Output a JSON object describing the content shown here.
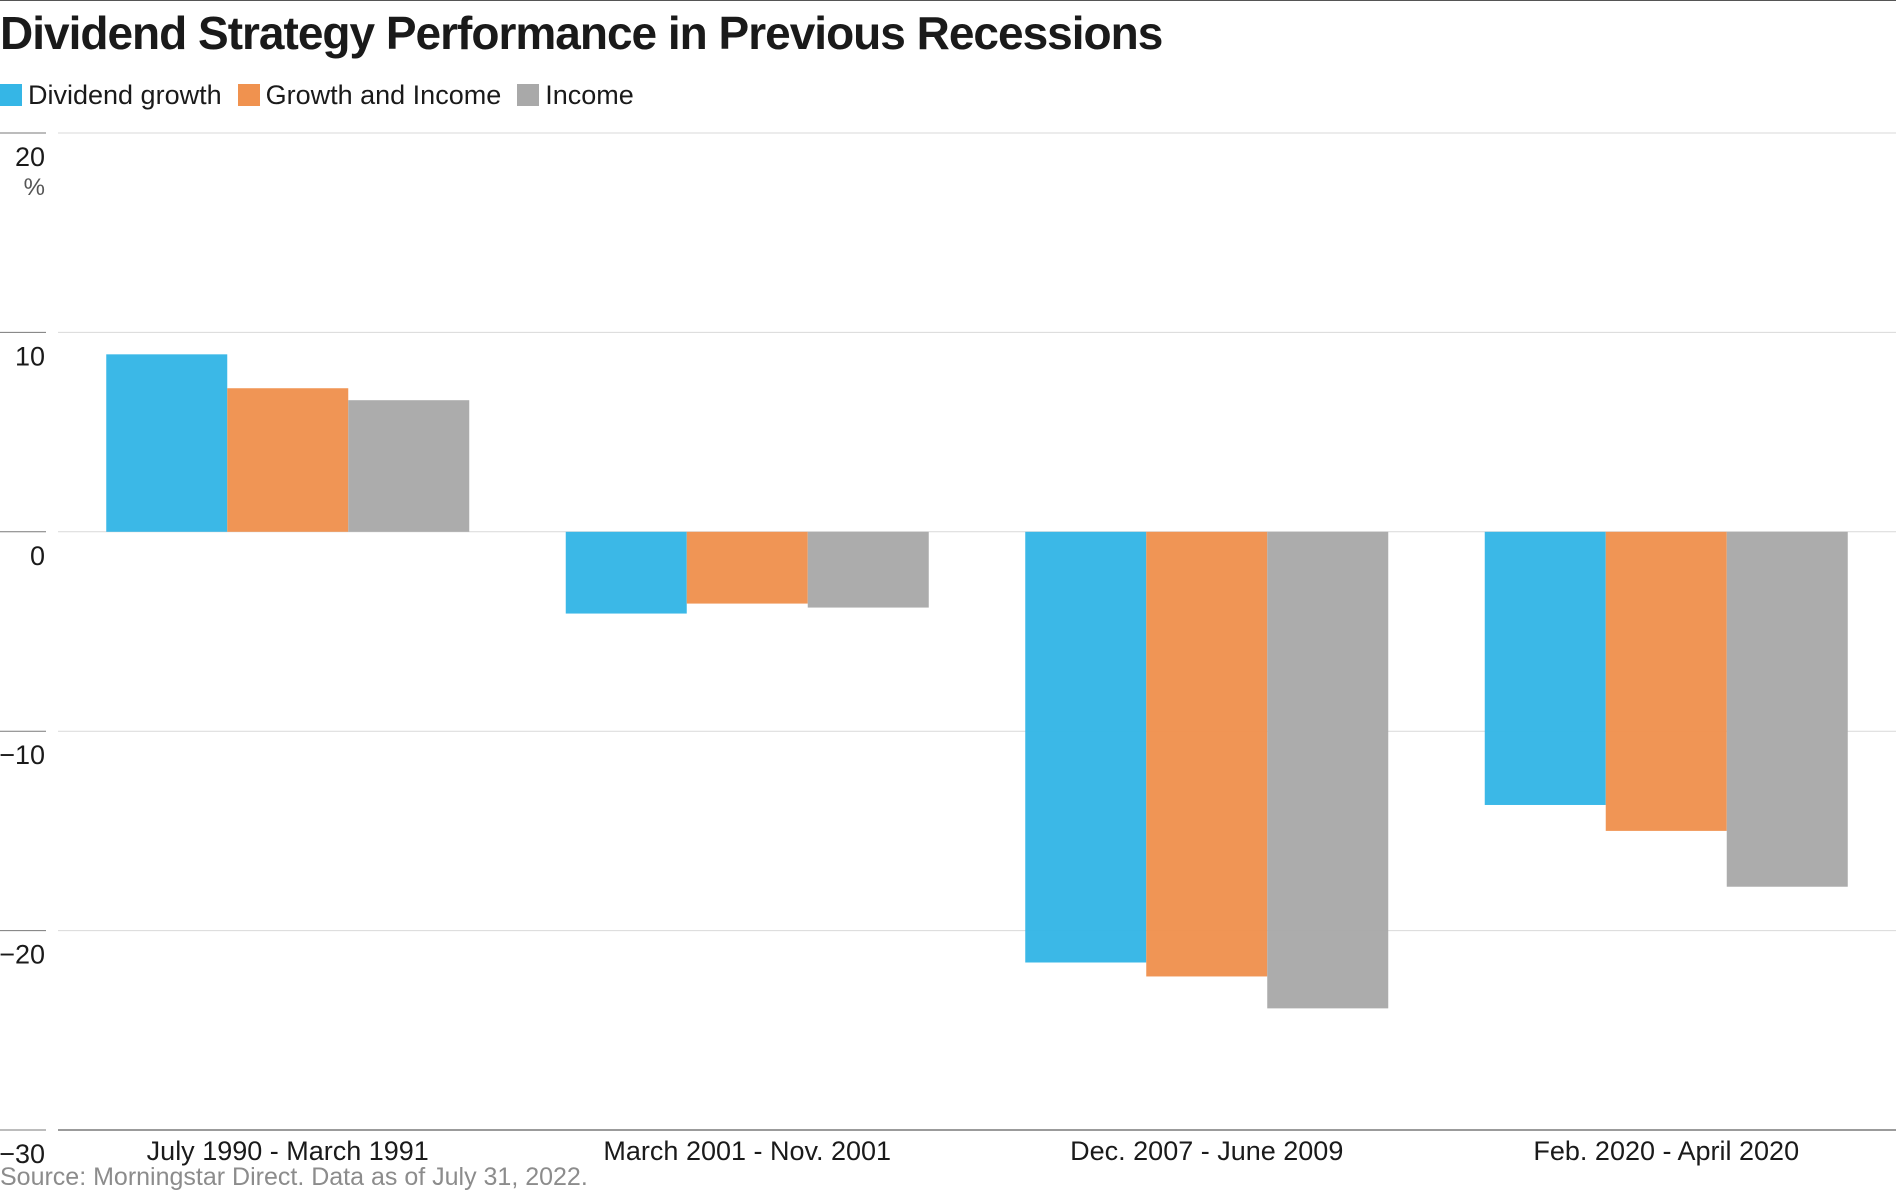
{
  "title": "Dividend Strategy Performance in Previous Recessions",
  "source": "Source: Morningstar Direct. Data as of July 31, 2022.",
  "unit_label": "%",
  "chart_data": {
    "type": "bar",
    "title": "Dividend Strategy Performance in Previous Recessions",
    "xlabel": "",
    "ylabel": "%",
    "ylim": [
      -30,
      20
    ],
    "yticks": [
      20,
      10,
      0,
      -10,
      -20,
      -30
    ],
    "ytick_labels": [
      "20",
      "10",
      "0",
      "−10",
      "−20",
      "−30"
    ],
    "grid": true,
    "legend_position": "top-left",
    "categories": [
      "July 1990 - March 1991",
      "March 2001 - Nov. 2001",
      "Dec. 2007 - June 2009",
      "Feb. 2020 - April 2020"
    ],
    "series": [
      {
        "name": "Dividend growth",
        "color": "#35b6e6",
        "values": [
          8.9,
          -4.1,
          -21.6,
          -13.7
        ]
      },
      {
        "name": "Growth and Income",
        "color": "#f0924f",
        "values": [
          7.2,
          -3.6,
          -22.3,
          -15.0
        ]
      },
      {
        "name": "Income",
        "color": "#a9a9a9",
        "values": [
          6.6,
          -3.8,
          -23.9,
          -17.8
        ]
      }
    ]
  }
}
